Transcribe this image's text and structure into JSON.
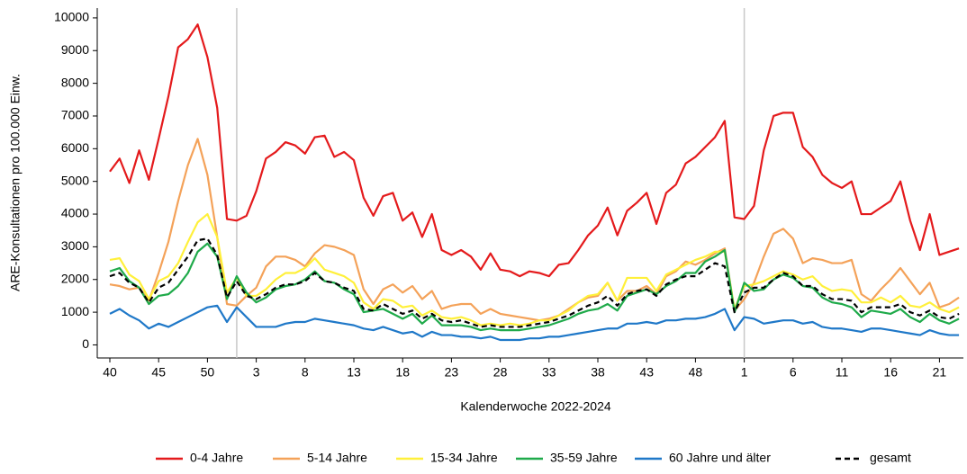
{
  "chart_data": {
    "type": "line",
    "y_label": "ARE-Konsultationen pro 100.000 Einw.",
    "x_label": "Kalenderwoche 2022-2024",
    "categories": [
      "40",
      null,
      null,
      null,
      null,
      "45",
      null,
      null,
      null,
      null,
      "50",
      null,
      null,
      null,
      null,
      "3",
      null,
      null,
      null,
      null,
      "8",
      null,
      null,
      null,
      null,
      "13",
      null,
      null,
      null,
      null,
      "18",
      null,
      null,
      null,
      null,
      "23",
      null,
      null,
      null,
      null,
      "28",
      null,
      null,
      null,
      null,
      "33",
      null,
      null,
      null,
      null,
      "38",
      null,
      null,
      null,
      null,
      "43",
      null,
      null,
      null,
      null,
      "48",
      null,
      null,
      null,
      null,
      "1",
      null,
      null,
      null,
      null,
      "6",
      null,
      null,
      null,
      null,
      "11",
      null,
      null,
      null,
      null,
      "16",
      null,
      null,
      null,
      null,
      "21",
      null,
      null
    ],
    "vlines": [
      13,
      65
    ],
    "ylim": [
      -400,
      10300
    ],
    "yticks": [
      0,
      1000,
      2000,
      3000,
      4000,
      5000,
      6000,
      7000,
      8000,
      9000,
      10000
    ],
    "legend": "bottom",
    "series": [
      {
        "name": "0-4 Jahre",
        "color": "#e41a1c",
        "dash": false,
        "values": [
          5300,
          5700,
          4950,
          5950,
          5050,
          6300,
          7600,
          9100,
          9350,
          9800,
          8800,
          7250,
          3850,
          3800,
          3950,
          4700,
          5700,
          5900,
          6200,
          6100,
          5850,
          6350,
          6400,
          5750,
          5900,
          5650,
          4500,
          3950,
          4550,
          4650,
          3800,
          4050,
          3300,
          4000,
          2900,
          2750,
          2900,
          2700,
          2300,
          2800,
          2300,
          2250,
          2100,
          2250,
          2200,
          2100,
          2450,
          2500,
          2900,
          3350,
          3650,
          4200,
          3350,
          4100,
          4350,
          4650,
          3700,
          4650,
          4900,
          5550,
          5750,
          6050,
          6350,
          6850,
          3900,
          3850,
          4250,
          5950,
          7000,
          7100,
          7100,
          6050,
          5750,
          5200,
          4950,
          4800,
          5000,
          4000,
          4000,
          4200,
          4400,
          5000,
          3800,
          2900,
          4000,
          2750,
          2850,
          2950
        ]
      },
      {
        "name": "5-14 Jahre",
        "color": "#f4a259",
        "dash": false,
        "values": [
          1850,
          1800,
          1700,
          1750,
          1350,
          2200,
          3150,
          4400,
          5500,
          6300,
          5200,
          3300,
          1250,
          1200,
          1500,
          1750,
          2400,
          2700,
          2700,
          2600,
          2400,
          2800,
          3050,
          3000,
          2900,
          2750,
          1700,
          1250,
          1700,
          1850,
          1600,
          1800,
          1400,
          1650,
          1100,
          1200,
          1250,
          1250,
          950,
          1100,
          950,
          900,
          850,
          800,
          750,
          800,
          900,
          1100,
          1300,
          1450,
          1500,
          1900,
          1350,
          1650,
          1650,
          1800,
          1550,
          2100,
          2250,
          2550,
          2450,
          2600,
          2800,
          2950,
          1050,
          1400,
          1900,
          2700,
          3400,
          3550,
          3250,
          2500,
          2650,
          2600,
          2500,
          2500,
          2600,
          1550,
          1350,
          1700,
          2000,
          2350,
          1950,
          1550,
          1900,
          1150,
          1250,
          1450
        ]
      },
      {
        "name": "15-34 Jahre",
        "color": "#fff03a",
        "dash": false,
        "values": [
          2600,
          2650,
          2150,
          1950,
          1400,
          1950,
          2100,
          2500,
          3150,
          3750,
          4000,
          3300,
          1600,
          2050,
          1500,
          1500,
          1700,
          2000,
          2200,
          2200,
          2350,
          2650,
          2300,
          2200,
          2100,
          1900,
          1300,
          1100,
          1400,
          1350,
          1150,
          1200,
          900,
          1050,
          850,
          800,
          850,
          750,
          600,
          650,
          600,
          650,
          600,
          650,
          750,
          750,
          900,
          1050,
          1300,
          1500,
          1550,
          1900,
          1350,
          2050,
          2050,
          2050,
          1650,
          2150,
          2300,
          2450,
          2600,
          2700,
          2850,
          2850,
          1100,
          1800,
          1850,
          1950,
          2100,
          2250,
          2150,
          2000,
          2100,
          1800,
          1650,
          1700,
          1650,
          1300,
          1300,
          1450,
          1300,
          1500,
          1200,
          1150,
          1300,
          1100,
          1000,
          1150
        ]
      },
      {
        "name": "35-59 Jahre",
        "color": "#1faa4a",
        "dash": false,
        "values": [
          2250,
          2350,
          1950,
          1750,
          1250,
          1500,
          1550,
          1800,
          2200,
          2850,
          3100,
          2700,
          1400,
          2100,
          1600,
          1300,
          1450,
          1700,
          1800,
          1850,
          2000,
          2250,
          1950,
          1900,
          1700,
          1550,
          1000,
          1050,
          1100,
          950,
          800,
          950,
          650,
          900,
          600,
          600,
          600,
          550,
          450,
          500,
          450,
          450,
          450,
          500,
          550,
          600,
          700,
          800,
          950,
          1050,
          1100,
          1250,
          1050,
          1500,
          1600,
          1700,
          1550,
          1800,
          1950,
          2200,
          2200,
          2550,
          2700,
          2900,
          1000,
          1900,
          1650,
          1700,
          2000,
          2150,
          2050,
          1800,
          1750,
          1450,
          1300,
          1250,
          1150,
          850,
          1050,
          1000,
          950,
          1100,
          850,
          700,
          950,
          750,
          650,
          800
        ]
      },
      {
        "name": "60 Jahre und älter",
        "color": "#1f78c8",
        "dash": false,
        "values": [
          950,
          1100,
          900,
          750,
          500,
          650,
          550,
          700,
          850,
          1000,
          1150,
          1200,
          700,
          1150,
          850,
          550,
          550,
          550,
          650,
          700,
          700,
          800,
          750,
          700,
          650,
          600,
          500,
          450,
          550,
          450,
          350,
          400,
          250,
          400,
          300,
          300,
          250,
          250,
          200,
          250,
          150,
          150,
          150,
          200,
          200,
          250,
          250,
          300,
          350,
          400,
          450,
          500,
          500,
          650,
          650,
          700,
          650,
          750,
          750,
          800,
          800,
          850,
          950,
          1100,
          450,
          850,
          800,
          650,
          700,
          750,
          750,
          650,
          700,
          550,
          500,
          500,
          450,
          400,
          500,
          500,
          450,
          400,
          350,
          300,
          450,
          350,
          300,
          300
        ]
      },
      {
        "name": "gesamt",
        "color": "#000000",
        "dash": true,
        "values": [
          2100,
          2200,
          1900,
          1750,
          1300,
          1750,
          1900,
          2300,
          2700,
          3200,
          3250,
          2750,
          1450,
          1950,
          1500,
          1400,
          1550,
          1750,
          1850,
          1850,
          1950,
          2200,
          1950,
          1900,
          1750,
          1650,
          1100,
          1050,
          1250,
          1100,
          950,
          1050,
          800,
          950,
          750,
          700,
          750,
          650,
          550,
          600,
          550,
          550,
          550,
          600,
          650,
          700,
          800,
          900,
          1050,
          1200,
          1300,
          1500,
          1200,
          1550,
          1650,
          1700,
          1500,
          1850,
          2000,
          2100,
          2100,
          2300,
          2500,
          2400,
          1000,
          1600,
          1750,
          1750,
          2000,
          2200,
          2100,
          1800,
          1800,
          1550,
          1400,
          1400,
          1350,
          1000,
          1150,
          1150,
          1150,
          1250,
          1000,
          900,
          1050,
          850,
          800,
          950
        ]
      }
    ]
  }
}
